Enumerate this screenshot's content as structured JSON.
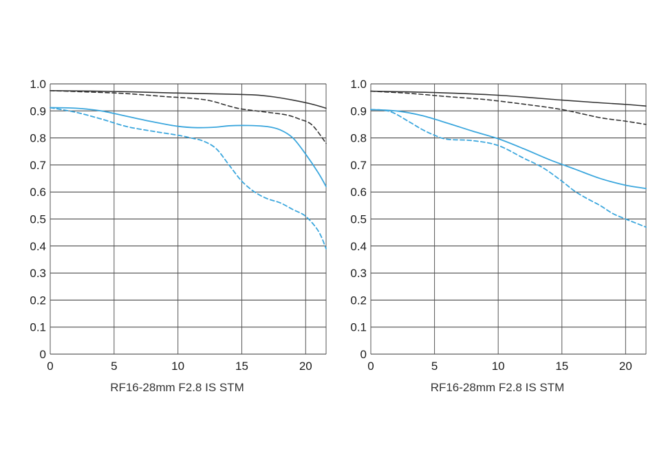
{
  "chart_data": [
    {
      "type": "line",
      "caption": "RF16-28mm F2.8 IS STM",
      "x_ticks": [
        "0",
        "5",
        "10",
        "15",
        "20"
      ],
      "x_tick_values": [
        0,
        5,
        10,
        15,
        20
      ],
      "y_ticks": [
        "0",
        "0.1",
        "0.2",
        "0.3",
        "0.4",
        "0.5",
        "0.6",
        "0.7",
        "0.8",
        "0.9",
        "1.0"
      ],
      "y_tick_values": [
        0,
        0.1,
        0.2,
        0.3,
        0.4,
        0.5,
        0.6,
        0.7,
        0.8,
        0.9,
        1.0
      ],
      "xlim": [
        0,
        21.6
      ],
      "ylim": [
        0,
        1.0
      ],
      "x_gridlines": [
        0,
        5,
        10,
        15,
        20,
        21.6
      ],
      "grid": true,
      "series": [
        {
          "color": "#333333",
          "style": "solid",
          "points": [
            [
              0,
              0.975
            ],
            [
              5,
              0.972
            ],
            [
              10,
              0.966
            ],
            [
              14,
              0.962
            ],
            [
              16,
              0.959
            ],
            [
              17.5,
              0.952
            ],
            [
              19,
              0.94
            ],
            [
              20.5,
              0.925
            ],
            [
              21.6,
              0.91
            ]
          ]
        },
        {
          "color": "#333333",
          "style": "dashed",
          "points": [
            [
              0,
              0.975
            ],
            [
              3,
              0.97
            ],
            [
              6,
              0.964
            ],
            [
              9,
              0.953
            ],
            [
              11,
              0.947
            ],
            [
              12.5,
              0.938
            ],
            [
              14,
              0.918
            ],
            [
              15,
              0.907
            ],
            [
              17,
              0.895
            ],
            [
              18.5,
              0.885
            ],
            [
              19.5,
              0.87
            ],
            [
              20.5,
              0.848
            ],
            [
              21.6,
              0.78
            ]
          ]
        },
        {
          "color": "#3aa6dd",
          "style": "solid",
          "points": [
            [
              0,
              0.912
            ],
            [
              2,
              0.91
            ],
            [
              4,
              0.9
            ],
            [
              6,
              0.88
            ],
            [
              8,
              0.86
            ],
            [
              10,
              0.843
            ],
            [
              11.5,
              0.838
            ],
            [
              13,
              0.84
            ],
            [
              14,
              0.845
            ],
            [
              15.5,
              0.846
            ],
            [
              17,
              0.842
            ],
            [
              18,
              0.83
            ],
            [
              19,
              0.8
            ],
            [
              20,
              0.74
            ],
            [
              21,
              0.67
            ],
            [
              21.6,
              0.62
            ]
          ]
        },
        {
          "color": "#3aa6dd",
          "style": "dashed",
          "points": [
            [
              0,
              0.912
            ],
            [
              2,
              0.895
            ],
            [
              4,
              0.87
            ],
            [
              6,
              0.842
            ],
            [
              8,
              0.825
            ],
            [
              10,
              0.81
            ],
            [
              11,
              0.8
            ],
            [
              12,
              0.788
            ],
            [
              13,
              0.76
            ],
            [
              14,
              0.7
            ],
            [
              15,
              0.64
            ],
            [
              16,
              0.6
            ],
            [
              17,
              0.575
            ],
            [
              18,
              0.56
            ],
            [
              19,
              0.535
            ],
            [
              20,
              0.51
            ],
            [
              21,
              0.455
            ],
            [
              21.6,
              0.39
            ]
          ]
        }
      ]
    },
    {
      "type": "line",
      "caption": "RF16-28mm F2.8 IS STM",
      "x_ticks": [
        "0",
        "5",
        "10",
        "15",
        "20"
      ],
      "x_tick_values": [
        0,
        5,
        10,
        15,
        20
      ],
      "y_ticks": [
        "0",
        "0.1",
        "0.2",
        "0.3",
        "0.4",
        "0.5",
        "0.6",
        "0.7",
        "0.8",
        "0.9",
        "1.0"
      ],
      "y_tick_values": [
        0,
        0.1,
        0.2,
        0.3,
        0.4,
        0.5,
        0.6,
        0.7,
        0.8,
        0.9,
        1.0
      ],
      "xlim": [
        0,
        21.6
      ],
      "ylim": [
        0,
        1.0
      ],
      "x_gridlines": [
        0,
        5,
        10,
        15,
        20,
        21.6
      ],
      "grid": true,
      "series": [
        {
          "color": "#333333",
          "style": "solid",
          "points": [
            [
              0,
              0.973
            ],
            [
              5,
              0.968
            ],
            [
              10,
              0.958
            ],
            [
              15,
              0.94
            ],
            [
              18,
              0.93
            ],
            [
              20,
              0.924
            ],
            [
              21.6,
              0.918
            ]
          ]
        },
        {
          "color": "#333333",
          "style": "dashed",
          "points": [
            [
              0,
              0.973
            ],
            [
              3,
              0.965
            ],
            [
              6,
              0.953
            ],
            [
              9,
              0.942
            ],
            [
              12,
              0.925
            ],
            [
              15,
              0.905
            ],
            [
              18,
              0.875
            ],
            [
              20,
              0.862
            ],
            [
              21.6,
              0.85
            ]
          ]
        },
        {
          "color": "#3aa6dd",
          "style": "solid",
          "points": [
            [
              0,
              0.905
            ],
            [
              2,
              0.9
            ],
            [
              4,
              0.883
            ],
            [
              6,
              0.855
            ],
            [
              8,
              0.825
            ],
            [
              10,
              0.797
            ],
            [
              12,
              0.76
            ],
            [
              14,
              0.72
            ],
            [
              16,
              0.685
            ],
            [
              18,
              0.65
            ],
            [
              20,
              0.625
            ],
            [
              21.6,
              0.613
            ]
          ]
        },
        {
          "color": "#3aa6dd",
          "style": "dashed",
          "points": [
            [
              0,
              0.905
            ],
            [
              1.5,
              0.898
            ],
            [
              3,
              0.86
            ],
            [
              4,
              0.832
            ],
            [
              5,
              0.81
            ],
            [
              6,
              0.795
            ],
            [
              8,
              0.79
            ],
            [
              10,
              0.772
            ],
            [
              12,
              0.725
            ],
            [
              13.5,
              0.69
            ],
            [
              15,
              0.64
            ],
            [
              16,
              0.603
            ],
            [
              17,
              0.575
            ],
            [
              18,
              0.55
            ],
            [
              19,
              0.52
            ],
            [
              20,
              0.5
            ],
            [
              21.6,
              0.47
            ]
          ]
        }
      ]
    }
  ]
}
